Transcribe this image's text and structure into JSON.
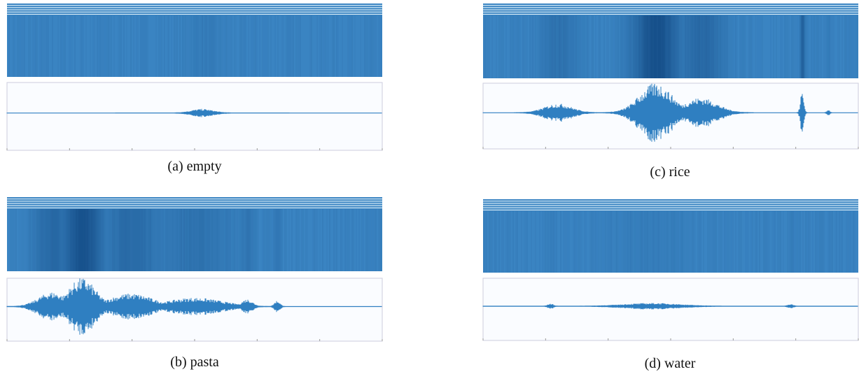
{
  "panels": [
    {
      "caption": "(a) empty"
    },
    {
      "caption": "(b) pasta"
    },
    {
      "caption": "(c) rice"
    },
    {
      "caption": "(d) water"
    }
  ]
}
